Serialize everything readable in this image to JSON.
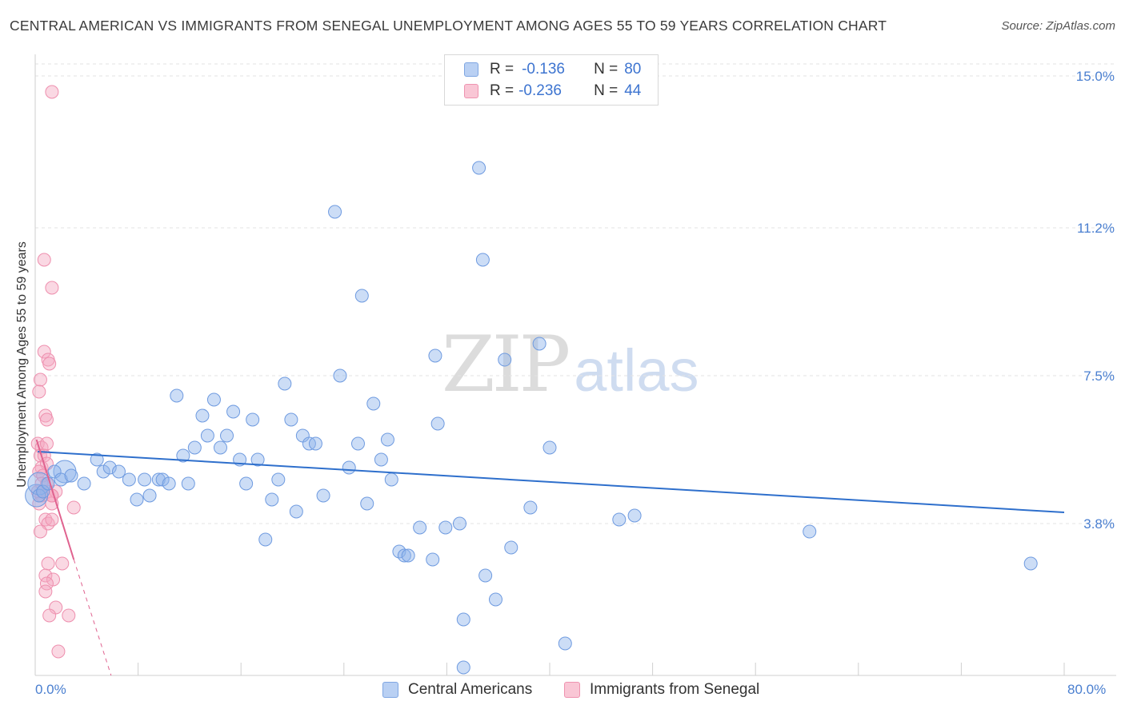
{
  "title": "CENTRAL AMERICAN VS IMMIGRANTS FROM SENEGAL UNEMPLOYMENT AMONG AGES 55 TO 59 YEARS CORRELATION CHART",
  "source": "Source: ZipAtlas.com",
  "watermark": {
    "zip": "ZIP",
    "atlas": "atlas"
  },
  "legend": {
    "rows": [
      {
        "r_label": "R =",
        "r_value": "-0.136",
        "n_label": "N =",
        "n_value": "80"
      },
      {
        "r_label": "R =",
        "r_value": "-0.236",
        "n_label": "N =",
        "n_value": "44"
      }
    ]
  },
  "chart_data": {
    "type": "scatter",
    "title": "CENTRAL AMERICAN VS IMMIGRANTS FROM SENEGAL UNEMPLOYMENT AMONG AGES 55 TO 59 YEARS CORRELATION CHART",
    "xlabel": "",
    "ylabel": "Unemployment Among Ages 55 to 59 years",
    "xlim": [
      0,
      80
    ],
    "ylim": [
      0,
      15.3
    ],
    "x_tick_labels": [
      "0.0%",
      "80.0%"
    ],
    "y_ticks": [
      3.8,
      7.5,
      11.2,
      15.0
    ],
    "y_tick_labels": [
      "3.8%",
      "7.5%",
      "11.2%",
      "15.0%"
    ],
    "grid": true,
    "legend_position": "top-center",
    "series": [
      {
        "name": "Central Americans",
        "color": "#8fb3ea",
        "line_color": "#2e6fcc",
        "trend": {
          "x": [
            0.2,
            80
          ],
          "y": [
            5.6,
            4.08
          ]
        },
        "points": [
          [
            0.3,
            4.5
          ],
          [
            0.6,
            4.6
          ],
          [
            1.0,
            4.8
          ],
          [
            1.5,
            5.1
          ],
          [
            2.0,
            4.9
          ],
          [
            2.8,
            5.0
          ],
          [
            3.8,
            4.8
          ],
          [
            4.8,
            5.4
          ],
          [
            5.3,
            5.1
          ],
          [
            5.8,
            5.2
          ],
          [
            6.5,
            5.1
          ],
          [
            7.3,
            4.9
          ],
          [
            7.9,
            4.4
          ],
          [
            8.5,
            4.9
          ],
          [
            8.9,
            4.5
          ],
          [
            9.6,
            4.9
          ],
          [
            9.9,
            4.9
          ],
          [
            10.4,
            4.8
          ],
          [
            11.0,
            7.0
          ],
          [
            11.5,
            5.5
          ],
          [
            11.9,
            4.8
          ],
          [
            12.4,
            5.7
          ],
          [
            13.0,
            6.5
          ],
          [
            13.4,
            6.0
          ],
          [
            13.9,
            6.9
          ],
          [
            14.4,
            5.7
          ],
          [
            14.9,
            6.0
          ],
          [
            15.4,
            6.6
          ],
          [
            15.9,
            5.4
          ],
          [
            16.4,
            4.8
          ],
          [
            16.9,
            6.4
          ],
          [
            17.3,
            5.4
          ],
          [
            17.9,
            3.4
          ],
          [
            18.4,
            4.4
          ],
          [
            18.9,
            4.9
          ],
          [
            19.4,
            7.3
          ],
          [
            19.9,
            6.4
          ],
          [
            20.3,
            4.1
          ],
          [
            20.8,
            6.0
          ],
          [
            21.3,
            5.8
          ],
          [
            21.8,
            5.8
          ],
          [
            22.4,
            4.5
          ],
          [
            23.3,
            11.6
          ],
          [
            23.7,
            7.5
          ],
          [
            24.4,
            5.2
          ],
          [
            25.1,
            5.8
          ],
          [
            25.4,
            9.5
          ],
          [
            25.8,
            4.3
          ],
          [
            26.3,
            6.8
          ],
          [
            26.9,
            5.4
          ],
          [
            27.4,
            5.9
          ],
          [
            27.7,
            4.9
          ],
          [
            28.3,
            3.1
          ],
          [
            28.7,
            3.0
          ],
          [
            29.0,
            3.0
          ],
          [
            29.9,
            3.7
          ],
          [
            30.9,
            2.9
          ],
          [
            31.1,
            8.0
          ],
          [
            31.3,
            6.3
          ],
          [
            31.9,
            3.7
          ],
          [
            33.0,
            3.8
          ],
          [
            33.3,
            1.4
          ],
          [
            34.5,
            12.7
          ],
          [
            34.8,
            10.4
          ],
          [
            35.0,
            2.5
          ],
          [
            35.8,
            1.9
          ],
          [
            36.5,
            7.9
          ],
          [
            37.0,
            3.2
          ],
          [
            38.5,
            4.2
          ],
          [
            39.2,
            8.3
          ],
          [
            40.0,
            5.7
          ],
          [
            41.2,
            0.8
          ],
          [
            45.4,
            3.9
          ],
          [
            46.6,
            4.0
          ],
          [
            60.2,
            3.6
          ],
          [
            77.4,
            2.8
          ],
          [
            33.3,
            0.2
          ]
        ],
        "large_points": [
          [
            0.1,
            4.5
          ],
          [
            0.3,
            4.8
          ],
          [
            2.3,
            5.1
          ]
        ]
      },
      {
        "name": "Immigrants from Senegal",
        "color": "#f5a9c0",
        "line_color": "#e0628f",
        "trend": {
          "x": [
            0.1,
            3.0
          ],
          "y": [
            5.9,
            2.9
          ]
        },
        "trend_dashed": {
          "x": [
            3.0,
            5.9
          ],
          "y": [
            2.9,
            0.0
          ]
        },
        "points": [
          [
            1.3,
            14.6
          ],
          [
            0.7,
            10.4
          ],
          [
            1.3,
            9.7
          ],
          [
            0.7,
            8.1
          ],
          [
            1.0,
            7.9
          ],
          [
            1.1,
            7.8
          ],
          [
            0.4,
            7.4
          ],
          [
            0.3,
            7.1
          ],
          [
            0.8,
            6.5
          ],
          [
            0.9,
            6.4
          ],
          [
            0.2,
            5.8
          ],
          [
            0.5,
            5.7
          ],
          [
            0.9,
            5.8
          ],
          [
            0.4,
            5.5
          ],
          [
            0.7,
            5.5
          ],
          [
            0.5,
            5.2
          ],
          [
            0.9,
            5.3
          ],
          [
            0.3,
            5.1
          ],
          [
            0.6,
            5.0
          ],
          [
            0.9,
            4.8
          ],
          [
            0.2,
            4.6
          ],
          [
            0.5,
            4.5
          ],
          [
            0.9,
            4.6
          ],
          [
            0.3,
            4.3
          ],
          [
            1.3,
            4.3
          ],
          [
            1.3,
            4.5
          ],
          [
            1.6,
            4.6
          ],
          [
            1.3,
            4.5
          ],
          [
            3.0,
            4.2
          ],
          [
            0.8,
            3.9
          ],
          [
            1.0,
            3.8
          ],
          [
            1.3,
            3.9
          ],
          [
            0.4,
            3.6
          ],
          [
            1.0,
            2.8
          ],
          [
            2.1,
            2.8
          ],
          [
            0.8,
            2.5
          ],
          [
            1.4,
            2.4
          ],
          [
            0.9,
            2.3
          ],
          [
            0.8,
            2.1
          ],
          [
            1.6,
            1.7
          ],
          [
            1.1,
            1.5
          ],
          [
            2.6,
            1.5
          ],
          [
            1.8,
            0.6
          ],
          [
            0.5,
            4.8
          ]
        ]
      }
    ]
  },
  "bottom_legend": [
    {
      "label": "Central Americans"
    },
    {
      "label": "Immigrants from Senegal"
    }
  ]
}
